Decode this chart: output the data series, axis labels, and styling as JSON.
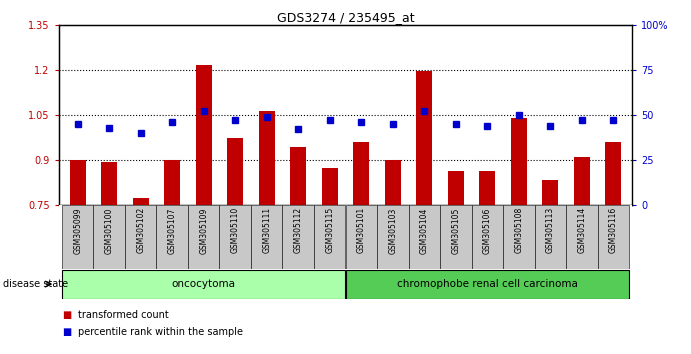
{
  "title": "GDS3274 / 235495_at",
  "samples": [
    "GSM305099",
    "GSM305100",
    "GSM305102",
    "GSM305107",
    "GSM305109",
    "GSM305110",
    "GSM305111",
    "GSM305112",
    "GSM305115",
    "GSM305101",
    "GSM305103",
    "GSM305104",
    "GSM305105",
    "GSM305106",
    "GSM305108",
    "GSM305113",
    "GSM305114",
    "GSM305116"
  ],
  "transformed_count": [
    0.9,
    0.895,
    0.775,
    0.9,
    1.215,
    0.975,
    1.065,
    0.945,
    0.875,
    0.96,
    0.9,
    1.195,
    0.865,
    0.865,
    1.04,
    0.835,
    0.91,
    0.96
  ],
  "percentile_rank": [
    45,
    43,
    40,
    46,
    52,
    47,
    49,
    42,
    47,
    46,
    45,
    52,
    45,
    44,
    50,
    44,
    47,
    47
  ],
  "oncocytoma_count": 9,
  "chromophobe_count": 9,
  "ylim_left": [
    0.75,
    1.35
  ],
  "ylim_right": [
    0,
    100
  ],
  "yticks_left": [
    0.75,
    0.9,
    1.05,
    1.2,
    1.35
  ],
  "yticks_right": [
    0,
    25,
    50,
    75,
    100
  ],
  "ytick_labels_left": [
    "0.75",
    "0.9",
    "1.05",
    "1.2",
    "1.35"
  ],
  "ytick_labels_right": [
    "0",
    "25",
    "50",
    "75",
    "100%"
  ],
  "hlines": [
    0.9,
    1.05,
    1.2
  ],
  "bar_color": "#C00000",
  "dot_color": "#0000CC",
  "oncocytoma_color": "#AAFFAA",
  "chromophobe_color": "#55CC55",
  "label_bg_color": "#C8C8C8",
  "group_label_oncocytoma": "oncocytoma",
  "group_label_chromophobe": "chromophobe renal cell carcinoma",
  "disease_state_label": "disease state",
  "legend_bar_label": "transformed count",
  "legend_dot_label": "percentile rank within the sample"
}
